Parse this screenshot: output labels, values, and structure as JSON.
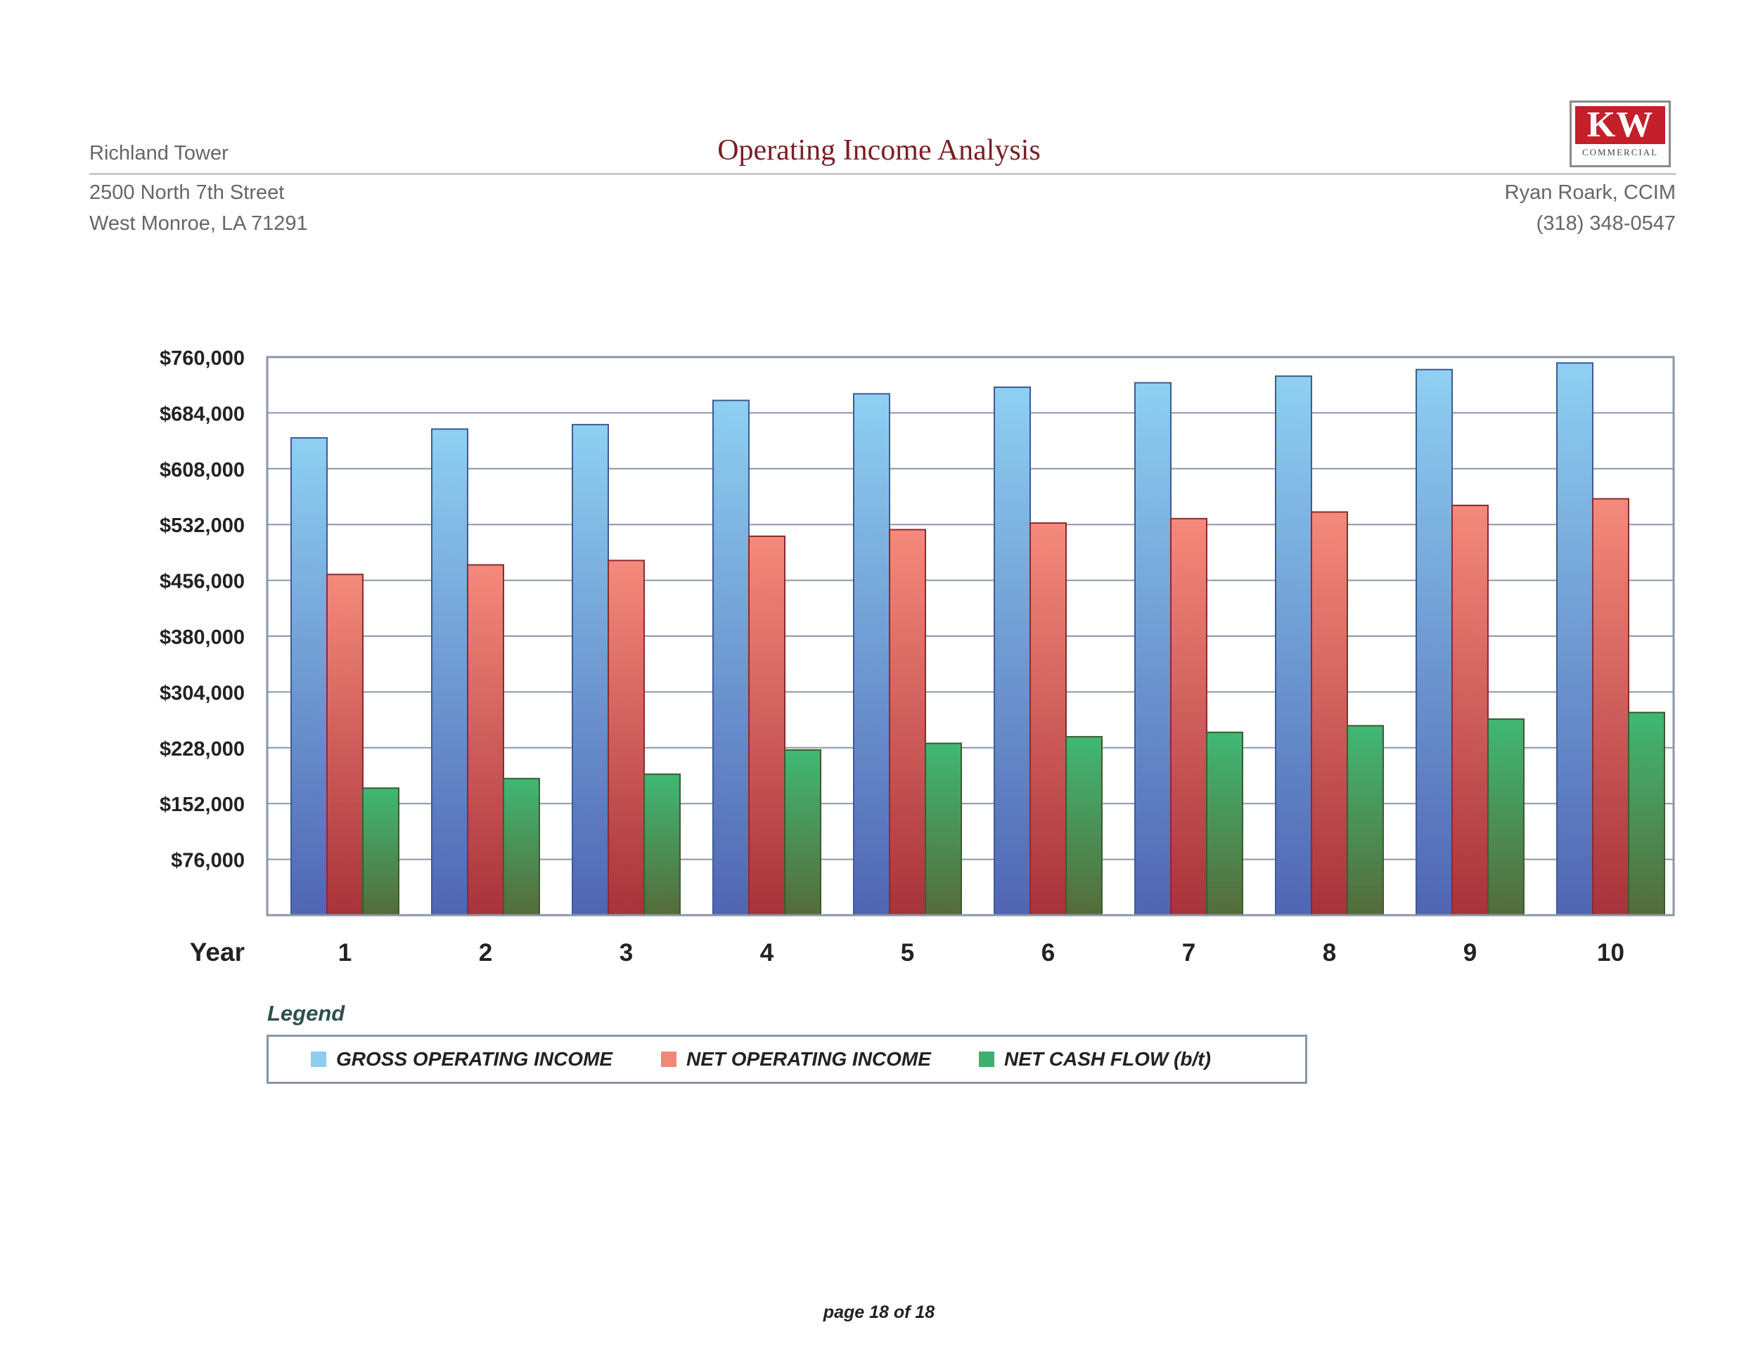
{
  "header": {
    "property_name": "Richland Tower",
    "title": "Operating Income Analysis",
    "address_line1": "2500 North 7th Street",
    "address_line2": "West Monroe, LA 71291",
    "agent_name": "Ryan Roark, CCIM",
    "agent_phone": "(318) 348-0547",
    "logo_text": "KW",
    "logo_subtext": "COMMERCIAL"
  },
  "chart_data": {
    "type": "bar",
    "title": "Operating Income Analysis",
    "xlabel": "Year",
    "ylabel": "",
    "categories": [
      "1",
      "2",
      "3",
      "4",
      "5",
      "6",
      "7",
      "8",
      "9",
      "10"
    ],
    "series": [
      {
        "name": "GROSS OPERATING INCOME",
        "color": "#8ccdf0",
        "values": [
          650000,
          662000,
          668000,
          701000,
          710000,
          719000,
          725000,
          734000,
          743000,
          752000
        ]
      },
      {
        "name": "NET OPERATING INCOME",
        "color": "#f08878",
        "values": [
          464000,
          477000,
          483000,
          516000,
          525000,
          534000,
          540000,
          549000,
          558000,
          567000
        ]
      },
      {
        "name": "NET CASH FLOW (b/t)",
        "color": "#3daf6e",
        "values": [
          173000,
          186000,
          192000,
          225000,
          234000,
          243000,
          249000,
          258000,
          267000,
          276000
        ]
      }
    ],
    "y_ticks": [
      "$76,000",
      "$152,000",
      "$228,000",
      "$304,000",
      "$380,000",
      "$456,000",
      "$532,000",
      "$608,000",
      "$684,000",
      "$760,000"
    ],
    "y_tick_values": [
      76000,
      152000,
      228000,
      304000,
      380000,
      456000,
      532000,
      608000,
      684000,
      760000
    ],
    "ylim": [
      0,
      760000
    ],
    "grid": true,
    "legend_title": "Legend",
    "legend_position": "bottom"
  },
  "footer": {
    "page_label": "page 18 of 18"
  }
}
